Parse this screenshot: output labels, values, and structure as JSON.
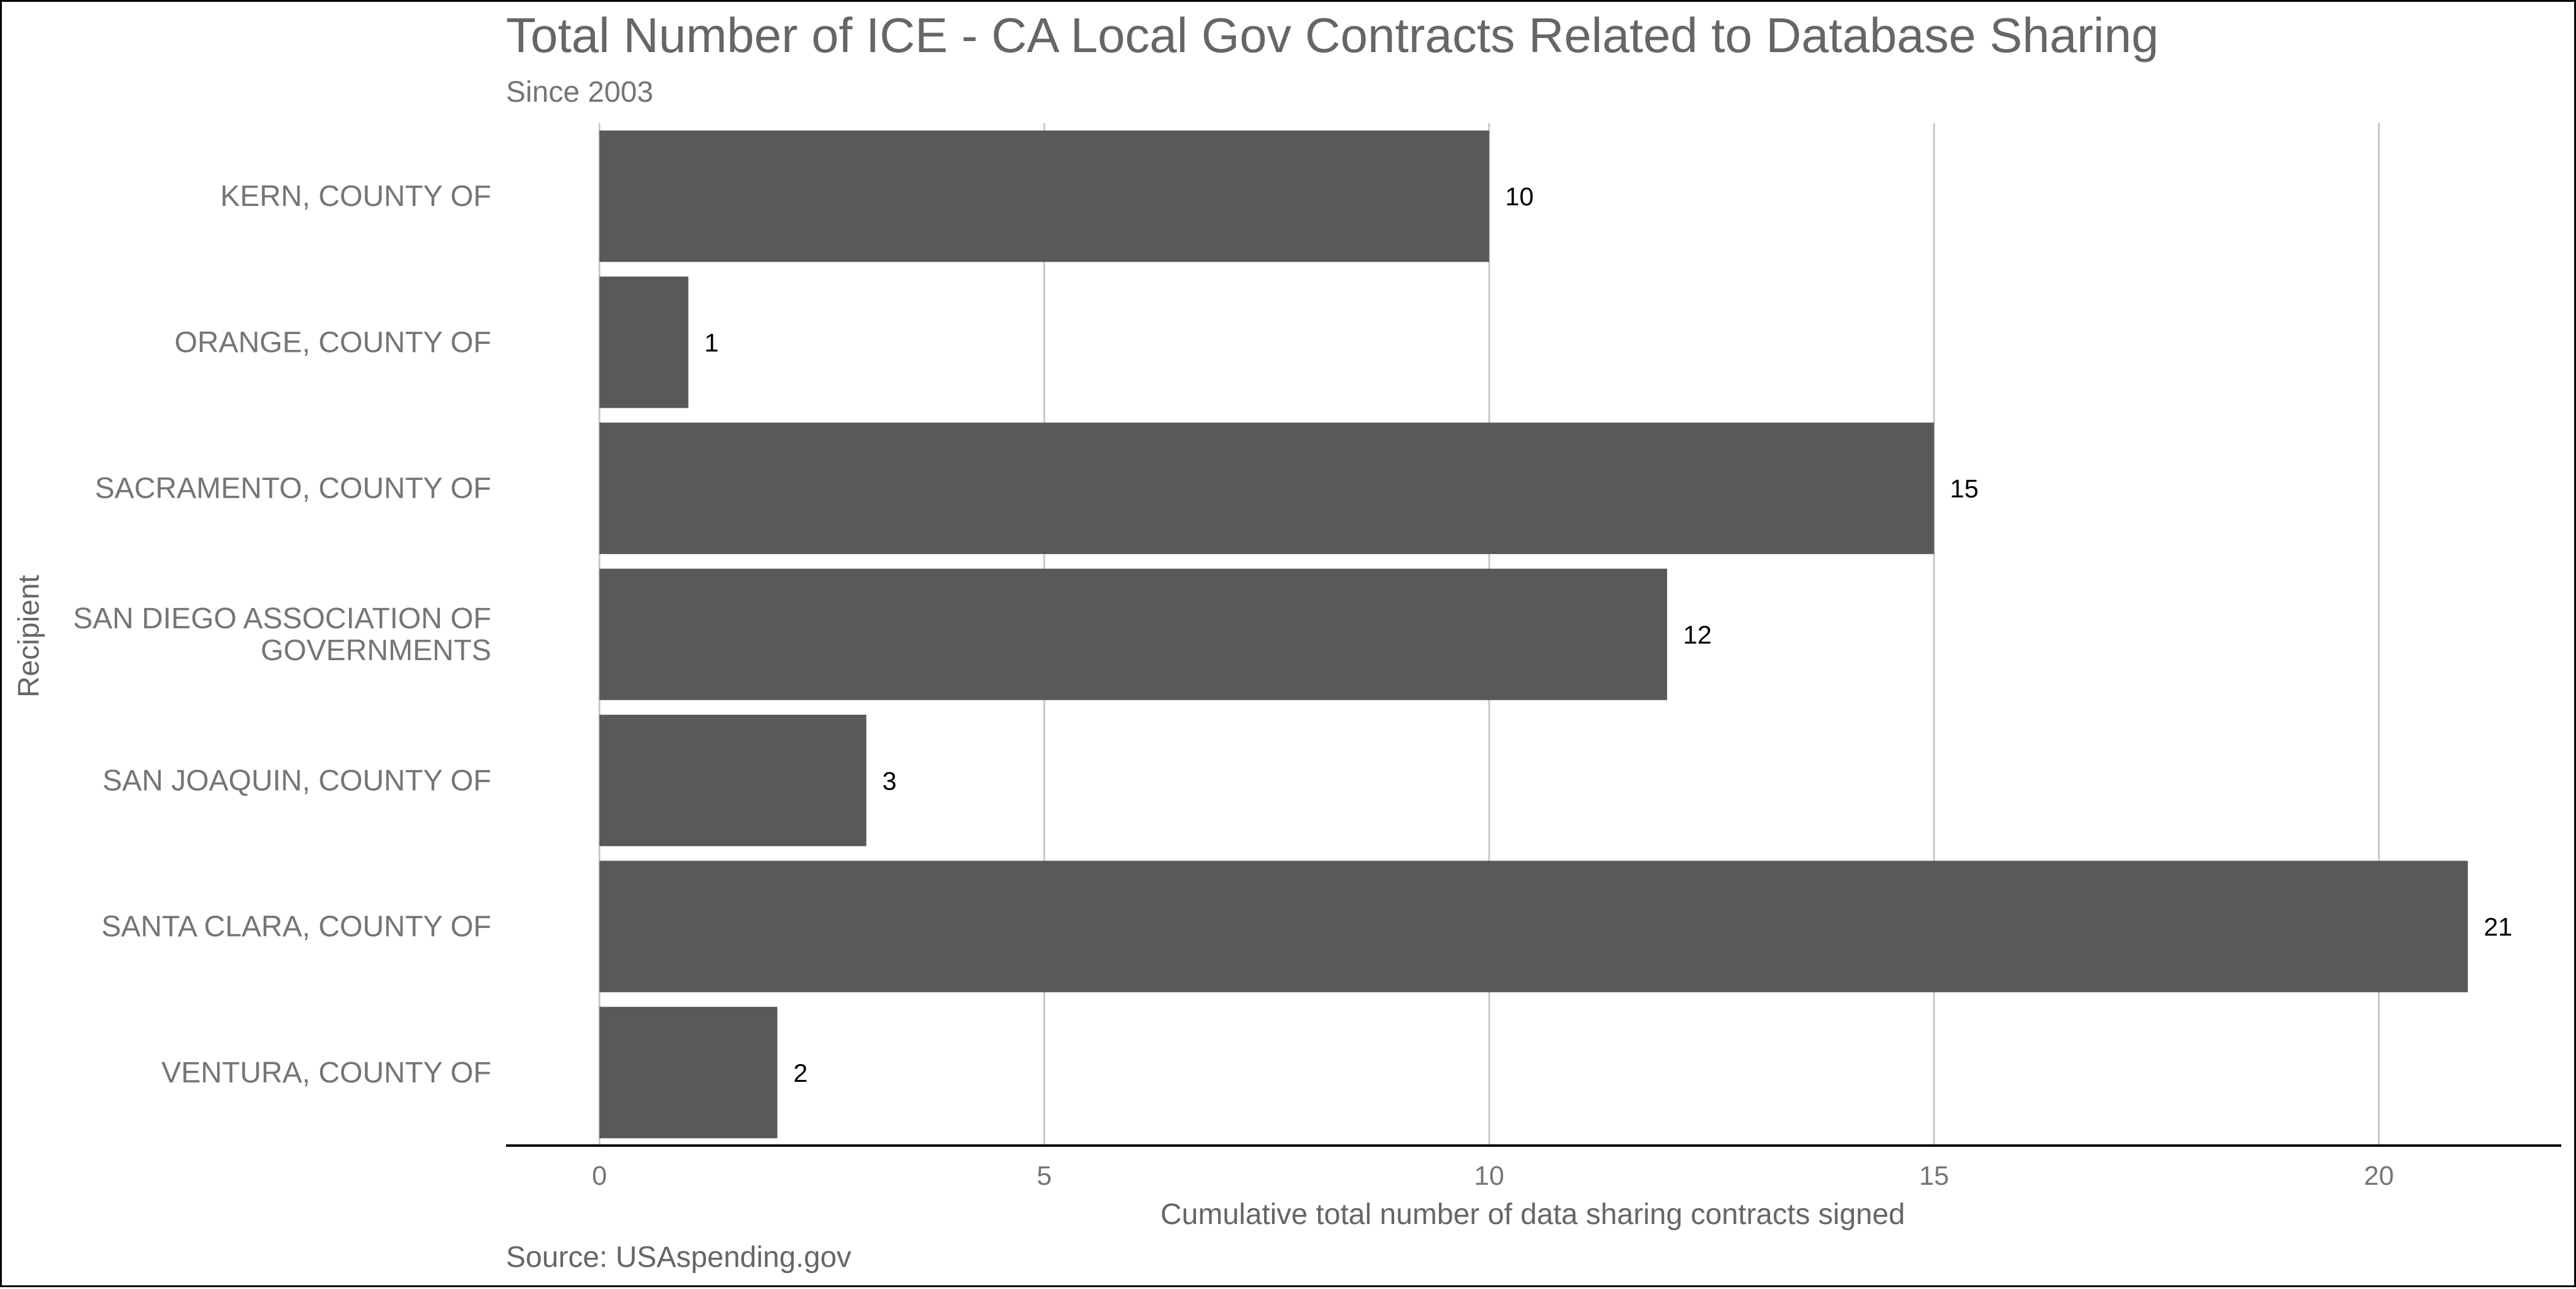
{
  "chart_data": {
    "type": "bar",
    "orientation": "horizontal",
    "title": "Total Number of ICE - CA Local Gov Contracts Related to Database Sharing",
    "subtitle": "Since 2003",
    "caption": "Source: USAspending.gov",
    "xlabel": "Cumulative total number of data sharing contracts signed",
    "ylabel": "Recipient",
    "categories": [
      [
        "KERN, COUNTY OF"
      ],
      [
        "ORANGE, COUNTY OF"
      ],
      [
        "SACRAMENTO, COUNTY OF"
      ],
      [
        "SAN DIEGO ASSOCIATION OF",
        "GOVERNMENTS"
      ],
      [
        "SAN JOAQUIN, COUNTY OF"
      ],
      [
        "SANTA CLARA, COUNTY OF"
      ],
      [
        "VENTURA, COUNTY OF"
      ]
    ],
    "values": [
      10,
      1,
      15,
      12,
      3,
      21,
      2
    ],
    "data_labels": [
      "10",
      "1",
      "15",
      "12",
      "3",
      "21",
      "2"
    ],
    "xticks": [
      0,
      5,
      10,
      15,
      20
    ],
    "xtick_labels": [
      "0",
      "5",
      "10",
      "15",
      "20"
    ],
    "xlim": [
      -1.05,
      22.05
    ],
    "grid": "vertical major",
    "legend": "none",
    "bar_color": "#595959",
    "grid_color": "#c8c8c8",
    "axis_color": "#000000"
  }
}
